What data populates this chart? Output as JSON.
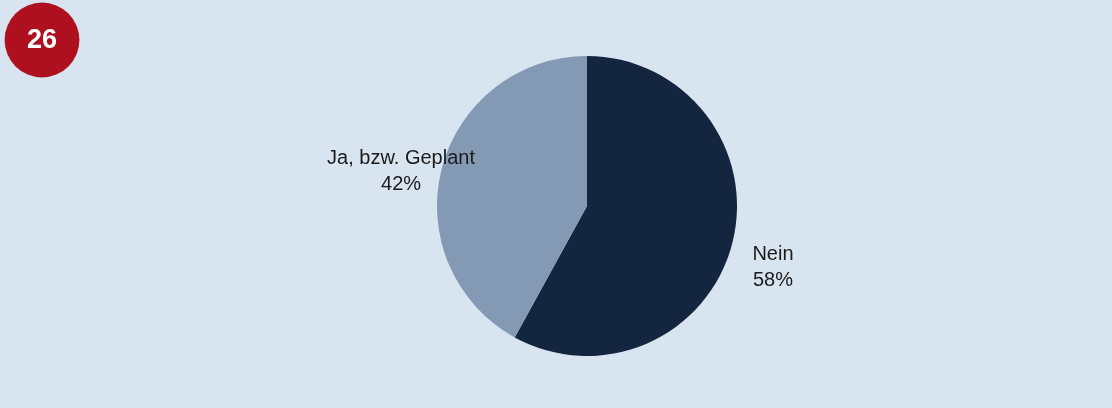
{
  "chart_data": {
    "type": "pie",
    "categories": [
      "Nein",
      "Ja, bzw. Geplant"
    ],
    "values": [
      58,
      42
    ],
    "value_labels": [
      "58%",
      "42%"
    ],
    "colors": [
      "#13253f",
      "#8499b4"
    ],
    "annotations": [
      "26"
    ],
    "legend": false
  }
}
